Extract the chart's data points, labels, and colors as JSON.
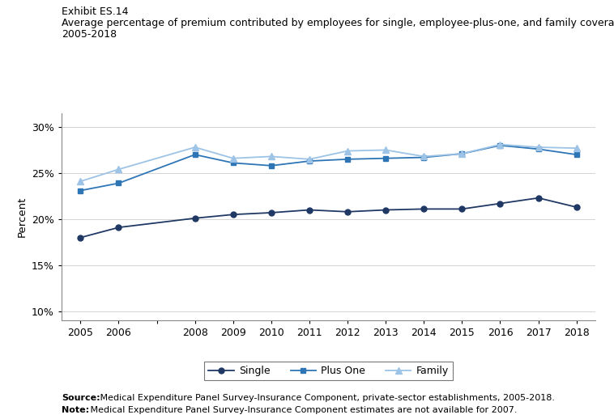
{
  "years": [
    2005,
    2006,
    2008,
    2009,
    2010,
    2011,
    2012,
    2013,
    2014,
    2015,
    2016,
    2017,
    2018
  ],
  "single": [
    18.0,
    19.1,
    20.1,
    20.5,
    20.7,
    21.0,
    20.8,
    21.0,
    21.1,
    21.1,
    21.7,
    22.3,
    21.3
  ],
  "plus_one": [
    23.1,
    23.9,
    27.0,
    26.1,
    25.8,
    26.3,
    26.5,
    26.6,
    26.7,
    27.1,
    28.0,
    27.6,
    27.0
  ],
  "family": [
    24.1,
    25.4,
    27.8,
    26.6,
    26.8,
    26.5,
    27.4,
    27.5,
    26.8,
    27.1,
    28.1,
    27.8,
    27.7
  ],
  "single_color": "#1f3864",
  "plus_one_color": "#2e75b6",
  "family_color": "#9dc3e6",
  "ylabel": "Percent",
  "yticks": [
    10,
    15,
    20,
    25,
    30
  ],
  "ytick_labels": [
    "10%",
    "15%",
    "20%",
    "25%",
    "30%"
  ],
  "ylim": [
    9,
    31.5
  ],
  "xlim": [
    2004.5,
    2018.5
  ],
  "exhibit_label": "Exhibit ES.14",
  "title_line1": "Average percentage of premium contributed by employees for single, employee-plus-one, and family coverage,",
  "title_line2": "2005-2018",
  "source_bold": "Source:",
  "source_rest": " Medical Expenditure Panel Survey-Insurance Component, private-sector establishments, 2005-2018.",
  "note_bold": "Note:",
  "note_rest": " Medical Expenditure Panel Survey-Insurance Component estimates are not available for 2007.",
  "legend_labels": [
    "Single",
    "Plus One",
    "Family"
  ],
  "background_color": "#ffffff"
}
